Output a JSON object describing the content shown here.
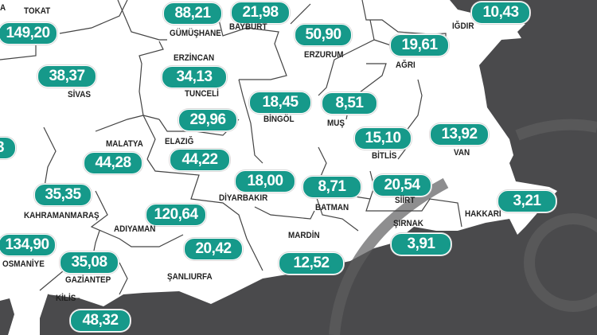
{
  "colors": {
    "badge": "#16998a",
    "outside": "#4a4a4c",
    "land": "#ffffff",
    "border": "#444444"
  },
  "provinces": [
    {
      "name": "TOKAT",
      "value": "149,20"
    },
    {
      "name": "SİVAS",
      "value": "38,37"
    },
    {
      "name": "GÜMÜŞHANE",
      "value": "88,21"
    },
    {
      "name": "BAYBURT",
      "value": "21,98"
    },
    {
      "name": "ERZURUM",
      "value": "50,90"
    },
    {
      "name": "IĞDIR",
      "value": "10,43"
    },
    {
      "name": "AĞRI",
      "value": "19,61"
    },
    {
      "name": "ERZİNCAN",
      "value": "34,13"
    },
    {
      "name": "TUNCELİ",
      "value": "29,96"
    },
    {
      "name": "BİNGÖL",
      "value": "18,45"
    },
    {
      "name": "MUŞ",
      "value": "8,51"
    },
    {
      "name": "BİTLİS",
      "value": "15,10"
    },
    {
      "name": "VAN",
      "value": "13,92"
    },
    {
      "name": "MALATYA",
      "value": "44,28"
    },
    {
      "name": "ELAZIĞ",
      "value": "44,22"
    },
    {
      "name": "DİYARBAKIR",
      "value": "18,00"
    },
    {
      "name": "BATMAN",
      "value": "8,71"
    },
    {
      "name": "SİİRT",
      "value": "20,54"
    },
    {
      "name": "HAKKARİ",
      "value": "3,21"
    },
    {
      "name": "ŞIRNAK",
      "value": "3,91"
    },
    {
      "name": "KAHRAMANMARAŞ",
      "value": "35,35"
    },
    {
      "name": "ADIYAMAN",
      "value": "120,64"
    },
    {
      "name": "OSMANİYE",
      "value": "134,90"
    },
    {
      "name": "GAZİANTEP",
      "value": "35,08"
    },
    {
      "name": "ŞANLIURFA",
      "value": "20,42"
    },
    {
      "name": "MARDİN",
      "value": "12,52"
    },
    {
      "name": "KİLİS",
      "value": "48,32"
    }
  ],
  "partial": {
    "top_left_label": "A",
    "left_badge": "3"
  }
}
